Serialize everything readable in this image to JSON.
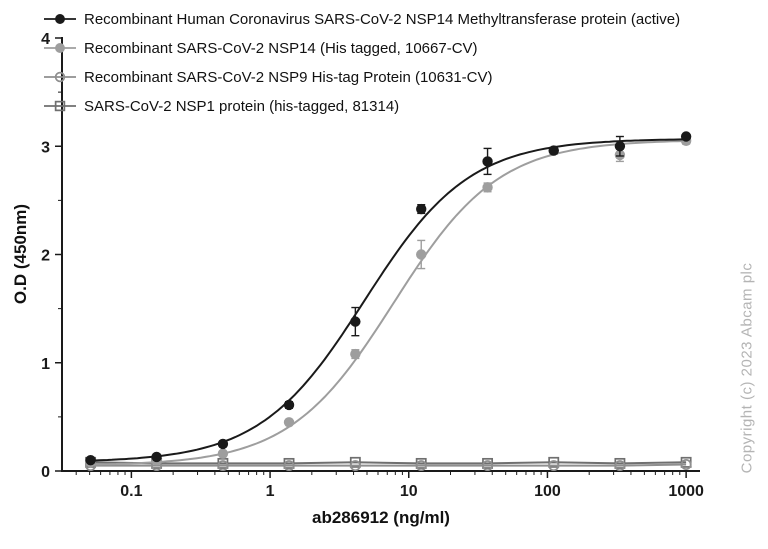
{
  "chart_data": {
    "type": "line",
    "title": "",
    "xlabel": "ab286912 (ng/ml)",
    "ylabel": "O.D (450nm)",
    "watermark": "Copyright (c) 2023 Abcam plc",
    "x_scale": "log",
    "xlim": [
      0.0316,
      1259
    ],
    "ylim": [
      0,
      4
    ],
    "x_ticks": [
      0.1,
      1,
      10,
      100,
      1000
    ],
    "x_tick_labels": [
      "0.1",
      "1",
      "10",
      "100",
      "1000"
    ],
    "y_ticks": [
      0,
      1,
      2,
      3,
      4
    ],
    "y_tick_labels": [
      "0",
      "1",
      "2",
      "3",
      "4"
    ],
    "y_minor_step": 0.5,
    "grid": false,
    "legend_position": "top-left",
    "axis_color": "#1a1a1a",
    "x": [
      0.0508,
      0.152,
      0.457,
      1.37,
      4.12,
      12.3,
      37,
      111,
      333,
      1000
    ],
    "series": [
      {
        "name": "Recombinant Human Coronavirus SARS-CoV-2 NSP14 Methyltransferase protein (active)",
        "marker": "filled-circle",
        "color": "#1a1a1a",
        "values": [
          0.1,
          0.13,
          0.25,
          0.61,
          1.38,
          2.42,
          2.86,
          2.96,
          3.0,
          3.09
        ],
        "errors": [
          0.02,
          0.02,
          0.02,
          0.03,
          0.13,
          0.04,
          0.12,
          0.03,
          0.09,
          0.02
        ],
        "fit_4pl": {
          "bottom": 0.08,
          "top": 3.07,
          "ec50": 4.8,
          "hill": 1.15
        }
      },
      {
        "name": "Recombinant SARS-CoV-2 NSP14 (His tagged, 10667-CV)",
        "marker": "filled-circle",
        "color": "#9e9e9e",
        "values": [
          0.08,
          0.1,
          0.16,
          0.45,
          1.08,
          2.0,
          2.62,
          2.96,
          2.92,
          3.05
        ],
        "errors": [
          0.02,
          0.02,
          0.02,
          0.02,
          0.04,
          0.13,
          0.04,
          0.03,
          0.06,
          0.03
        ],
        "fit_4pl": {
          "bottom": 0.05,
          "top": 3.06,
          "ec50": 7.8,
          "hill": 1.15
        }
      },
      {
        "name": "Recombinant SARS-CoV-2 NSP9 His-tag Protein (10631-CV)",
        "marker": "open-circle",
        "color": "#8f8f8f",
        "values": [
          0.05,
          0.05,
          0.05,
          0.05,
          0.05,
          0.05,
          0.05,
          0.05,
          0.05,
          0.06
        ],
        "errors": [
          0.01,
          0.01,
          0.01,
          0.01,
          0.01,
          0.01,
          0.01,
          0.01,
          0.01,
          0.01
        ],
        "fit_4pl": null
      },
      {
        "name": "SARS-CoV-2 NSP1 protein (his-tagged, 81314)",
        "marker": "open-square",
        "color": "#6f6f6f",
        "values": [
          0.08,
          0.07,
          0.07,
          0.07,
          0.08,
          0.07,
          0.07,
          0.08,
          0.07,
          0.08
        ],
        "errors": [
          0.01,
          0.01,
          0.01,
          0.01,
          0.01,
          0.01,
          0.01,
          0.01,
          0.01,
          0.01
        ],
        "fit_4pl": null
      }
    ]
  }
}
